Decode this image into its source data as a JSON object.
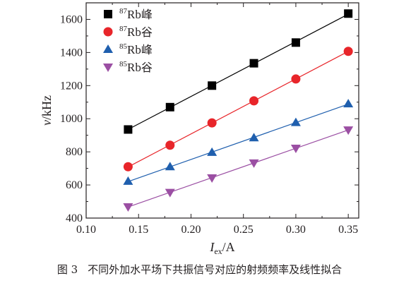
{
  "caption": {
    "figure_number": "图 3",
    "text": "不同外加水平场下共振信号对应的射频频率及线性拟合"
  },
  "chart_data": {
    "type": "scatter",
    "x_label": {
      "main": "I",
      "sub": "ex",
      "unit": "/A"
    },
    "y_label": {
      "main": "ν",
      "unit": "/kHz"
    },
    "xlim": [
      0.1,
      0.36
    ],
    "ylim": [
      400,
      1700
    ],
    "x_ticks": [
      "0.10",
      "0.15",
      "0.20",
      "0.25",
      "0.30",
      "0.35"
    ],
    "y_ticks": [
      "400",
      "600",
      "800",
      "1000",
      "1200",
      "1400",
      "1600"
    ],
    "grid": false,
    "legend_position": "top-left",
    "x": [
      0.14,
      0.18,
      0.22,
      0.26,
      0.3,
      0.35
    ],
    "series": [
      {
        "name": "87Rb峰",
        "isotope": "87",
        "element": "Rb",
        "feature": "峰",
        "marker": "square",
        "color": "#000000",
        "values": [
          935,
          1070,
          1200,
          1335,
          1460,
          1635
        ]
      },
      {
        "name": "87Rb谷",
        "isotope": "87",
        "element": "Rb",
        "feature": "谷",
        "marker": "circle",
        "color": "#e8252a",
        "values": [
          710,
          840,
          975,
          1108,
          1240,
          1407
        ]
      },
      {
        "name": "85Rb峰",
        "isotope": "85",
        "element": "Rb",
        "feature": "峰",
        "marker": "triangle-up",
        "color": "#1f5fae",
        "values": [
          622,
          710,
          797,
          885,
          977,
          1090
        ]
      },
      {
        "name": "85Rb谷",
        "isotope": "85",
        "element": "Rb",
        "feature": "谷",
        "marker": "triangle-down",
        "color": "#9b4fa3",
        "values": [
          468,
          555,
          643,
          733,
          822,
          932
        ]
      }
    ]
  }
}
